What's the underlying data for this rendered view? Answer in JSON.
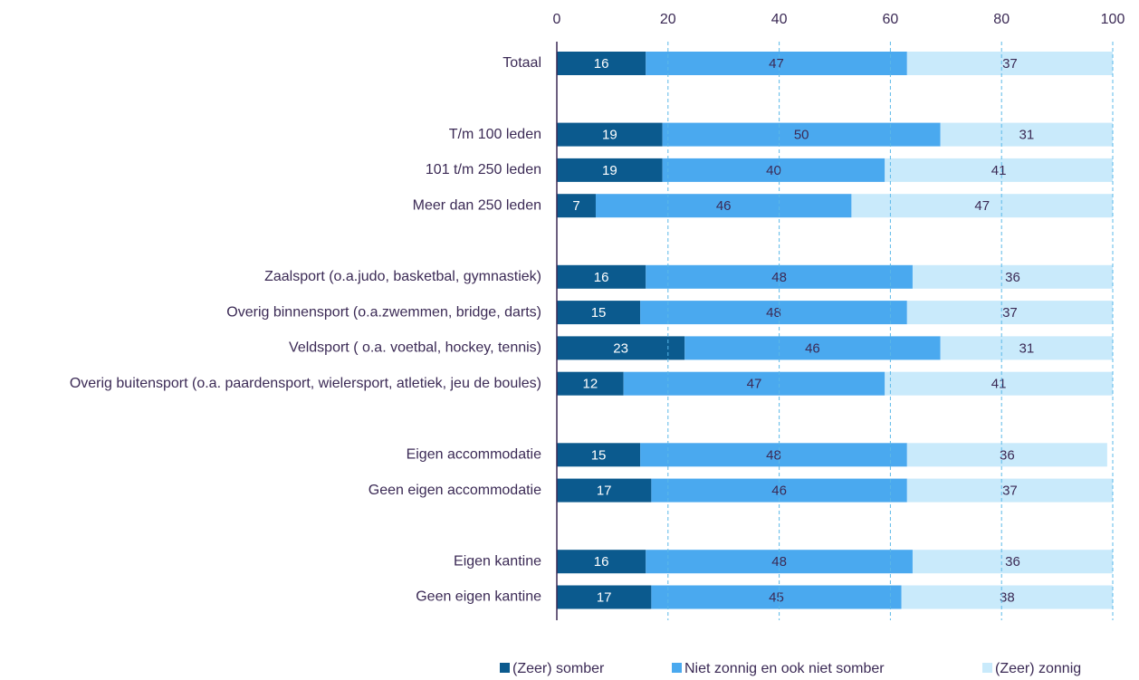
{
  "chart_data": {
    "type": "stacked-bar",
    "orientation": "horizontal",
    "categories": [
      "Totaal",
      null,
      "T/m 100 leden",
      "101 t/m 250 leden",
      "Meer dan 250 leden",
      null,
      "Zaalsport (o.a.judo, basketbal, gymnastiek)",
      "Overig binnensport (o.a.zwemmen, bridge, darts)",
      "Veldsport ( o.a. voetbal, hockey, tennis)",
      "Overig buitensport (o.a. paardensport, wielersport, atletiek, jeu de boules)",
      null,
      "Eigen accommodatie",
      "Geen eigen accommodatie",
      null,
      "Eigen kantine",
      "Geen eigen kantine"
    ],
    "series": [
      {
        "name": "(Zeer) somber",
        "color": "#0b5a8e",
        "values": [
          16,
          null,
          19,
          19,
          7,
          null,
          16,
          15,
          23,
          12,
          null,
          15,
          17,
          null,
          16,
          17
        ]
      },
      {
        "name": "Niet zonnig en ook niet somber",
        "color": "#4aa9ef",
        "values": [
          47,
          null,
          50,
          40,
          46,
          null,
          48,
          48,
          46,
          47,
          null,
          48,
          46,
          null,
          48,
          45
        ]
      },
      {
        "name": "(Zeer) zonnig",
        "color": "#c9eafb",
        "values": [
          37,
          null,
          31,
          41,
          47,
          null,
          36,
          37,
          31,
          41,
          null,
          36,
          37,
          null,
          36,
          38
        ]
      }
    ],
    "xlim": [
      0,
      100
    ],
    "xticks": [
      0,
      20,
      40,
      60,
      80,
      100
    ],
    "grid": true,
    "legend": "bottom"
  }
}
